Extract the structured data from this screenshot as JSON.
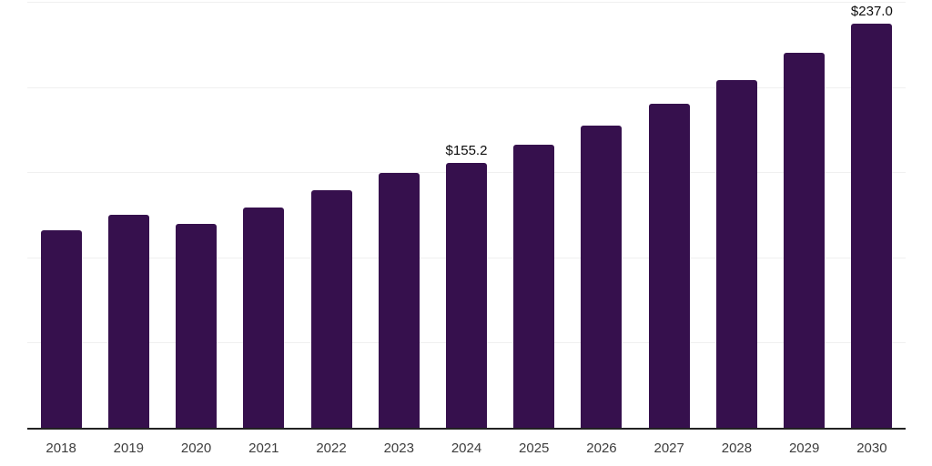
{
  "chart_data": {
    "type": "bar",
    "title": "",
    "xlabel": "",
    "ylabel": "",
    "categories": [
      "2018",
      "2019",
      "2020",
      "2021",
      "2022",
      "2023",
      "2024",
      "2025",
      "2026",
      "2027",
      "2028",
      "2029",
      "2030"
    ],
    "values": [
      116.0,
      125.0,
      119.8,
      129.3,
      139.5,
      149.8,
      155.2,
      166.0,
      177.1,
      190.0,
      203.8,
      220.0,
      237.0
    ],
    "data_labels": [
      "",
      "",
      "",
      "",
      "",
      "",
      "$155.2",
      "",
      "",
      "",
      "",
      "",
      "$237.0"
    ],
    "ylim": [
      0,
      250
    ],
    "gridline_step": 50,
    "grid": true,
    "legend": false,
    "colors": {
      "bar": "#36104D",
      "axis_line": "#222222",
      "gridline": "#f0f0f0",
      "value_label": "#0d0d0d",
      "tick_label": "#3d3d3d",
      "background": "#ffffff"
    }
  }
}
